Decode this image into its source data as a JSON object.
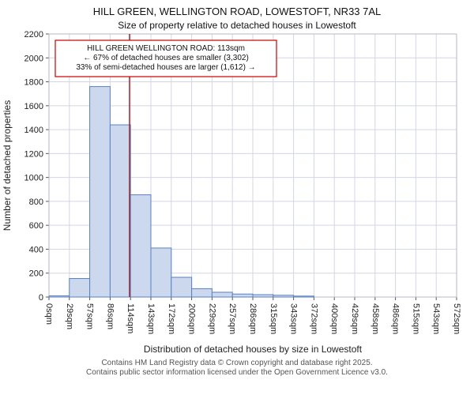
{
  "footer": {
    "line1": "Contains HM Land Registry data © Crown copyright and database right 2025.",
    "line2": "Contains public sector information licensed under the Open Government Licence v3.0."
  },
  "chart_data": {
    "type": "bar",
    "title": "HILL GREEN, WELLINGTON ROAD, LOWESTOFT, NR33 7AL",
    "subtitle": "Size of property relative to detached houses in Lowestoft",
    "xlabel": "Distribution of detached houses by size in Lowestoft",
    "ylabel": "Number of detached properties",
    "ylim": [
      0,
      2200
    ],
    "ytick_step": 200,
    "x_max_sqm": 572,
    "bin_edge_labels": [
      "0sqm",
      "29sqm",
      "57sqm",
      "86sqm",
      "114sqm",
      "143sqm",
      "172sqm",
      "200sqm",
      "229sqm",
      "257sqm",
      "286sqm",
      "315sqm",
      "343sqm",
      "372sqm",
      "400sqm",
      "429sqm",
      "458sqm",
      "486sqm",
      "515sqm",
      "543sqm",
      "572sqm"
    ],
    "values": [
      10,
      155,
      1760,
      1440,
      855,
      410,
      165,
      70,
      40,
      25,
      20,
      15,
      8,
      0,
      0,
      0,
      0,
      0,
      0,
      0
    ],
    "grid": true,
    "grid_color": "#d3d6e4",
    "spine_color": "#b5b8c5",
    "tick_color": "#555555",
    "bar_fill": "#ccd8ee",
    "bar_border": "#5b80c0",
    "marker": {
      "sqm": 113,
      "color": "#9b1c1c"
    },
    "annotation": {
      "line1": "HILL GREEN WELLINGTON ROAD: 113sqm",
      "line2": "← 67% of detached houses are smaller (3,302)",
      "line3": "33% of semi-detached houses are larger (1,612) →",
      "border_color": "#cc0000",
      "fill_color": "#ffffff",
      "text_color": "#111111"
    },
    "legend": null
  }
}
